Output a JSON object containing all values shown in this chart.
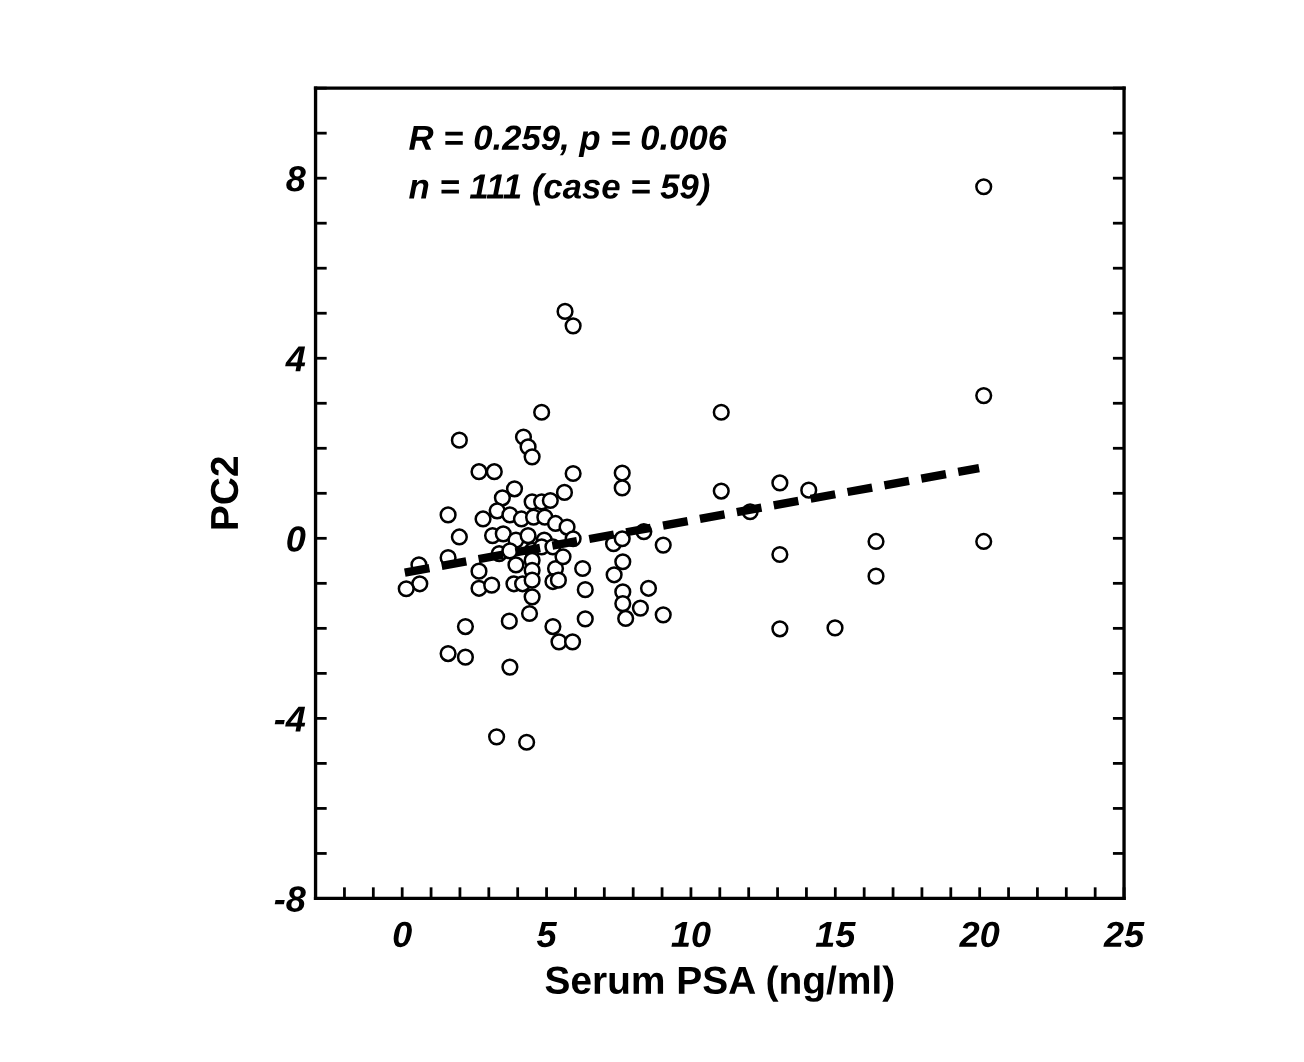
{
  "chart_data": {
    "type": "scatter",
    "xlabel": "Serum PSA (ng/ml)",
    "ylabel": "PC2",
    "annotations": [
      "R = 0.259, p = 0.006",
      "n = 111 (case = 59)"
    ],
    "xlim": [
      -3,
      25
    ],
    "ylim": [
      -8,
      10
    ],
    "xticks": [
      {
        "value": -3,
        "label": null
      },
      {
        "value": -2,
        "label": null
      },
      {
        "value": -1,
        "label": null
      },
      0,
      {
        "value": 1,
        "label": null
      },
      {
        "value": 2,
        "label": null
      },
      {
        "value": 3,
        "label": null
      },
      {
        "value": 4,
        "label": null
      },
      5,
      {
        "value": 6,
        "label": null
      },
      {
        "value": 7,
        "label": null
      },
      {
        "value": 8,
        "label": null
      },
      {
        "value": 9,
        "label": null
      },
      10,
      {
        "value": 11,
        "label": null
      },
      {
        "value": 12,
        "label": null
      },
      {
        "value": 13,
        "label": null
      },
      {
        "value": 14,
        "label": null
      },
      15,
      {
        "value": 16,
        "label": null
      },
      {
        "value": 17,
        "label": null
      },
      {
        "value": 18,
        "label": null
      },
      {
        "value": 19,
        "label": null
      },
      20,
      {
        "value": 21,
        "label": null
      },
      {
        "value": 22,
        "label": null
      },
      {
        "value": 23,
        "label": null
      },
      {
        "value": 24,
        "label": null
      },
      25
    ],
    "yticks": [
      -8,
      {
        "value": -7,
        "label": null
      },
      {
        "value": -6,
        "label": null
      },
      {
        "value": -5,
        "label": null
      },
      -4,
      {
        "value": -3,
        "label": null
      },
      {
        "value": -2,
        "label": null
      },
      {
        "value": -1,
        "label": null
      },
      0,
      {
        "value": 1,
        "label": null
      },
      {
        "value": 2,
        "label": null
      },
      {
        "value": 3,
        "label": null
      },
      4,
      {
        "value": 5,
        "label": null
      },
      {
        "value": 6,
        "label": null
      },
      {
        "value": 7,
        "label": null
      },
      8,
      {
        "value": 9,
        "label": null
      },
      {
        "value": 10,
        "label": null
      }
    ],
    "grid": false,
    "legend": false,
    "series": [
      {
        "color": "#000000",
        "marker": "circle",
        "x": [
          5.64,
          5.92,
          4.83,
          1.98,
          4.2,
          4.36,
          4.5,
          2.66,
          3.19,
          5.92,
          7.62,
          7.62,
          3.89,
          5.62,
          3.47,
          4.5,
          4.83,
          5.13,
          1.59,
          2.8,
          3.29,
          3.73,
          4.13,
          4.55,
          4.94,
          5.31,
          5.71,
          1.98,
          3.13,
          3.5,
          3.94,
          4.36,
          4.92,
          5.92,
          7.32,
          7.62,
          8.37,
          9.04,
          1.59,
          0.58,
          0.61,
          0.14,
          2.66,
          2.66,
          3.1,
          3.36,
          3.73,
          3.94,
          3.87,
          4.17,
          4.5,
          4.5,
          4.5,
          4.5,
          4.5,
          4.83,
          5.22,
          5.31,
          5.22,
          5.41,
          5.57,
          6.25,
          6.34,
          7.34,
          7.64,
          7.64,
          7.64,
          7.74,
          8.25,
          8.53,
          9.04,
          2.19,
          3.71,
          4.41,
          5.22,
          5.43,
          5.9,
          1.59,
          2.19,
          6.34,
          3.73,
          3.27,
          4.31,
          11.05,
          20.14,
          11.05,
          13.08,
          14.08,
          12.05,
          13.08,
          16.41,
          20.14,
          16.41,
          13.08,
          14.99,
          20.14
        ],
        "values": [
          5.04,
          4.72,
          2.8,
          2.18,
          2.25,
          2.03,
          1.81,
          1.48,
          1.48,
          1.44,
          1.45,
          1.12,
          1.1,
          1.02,
          0.9,
          0.81,
          0.81,
          0.84,
          0.52,
          0.43,
          0.61,
          0.52,
          0.43,
          0.47,
          0.47,
          0.33,
          0.25,
          0.03,
          0.06,
          0.1,
          -0.04,
          0.06,
          -0.04,
          -0.01,
          -0.12,
          -0.01,
          0.15,
          -0.15,
          -0.43,
          -0.59,
          -1.01,
          -1.12,
          -0.73,
          -1.11,
          -1.04,
          -0.34,
          -0.28,
          -0.59,
          -1.01,
          -1.01,
          -0.27,
          -0.49,
          -0.71,
          -0.93,
          -1.3,
          -0.19,
          -0.19,
          -0.67,
          -0.96,
          -0.93,
          -0.41,
          -0.67,
          -1.14,
          -0.81,
          -0.52,
          -1.19,
          -1.45,
          -1.78,
          -1.55,
          -1.11,
          -1.7,
          -1.96,
          -1.84,
          -1.67,
          -1.96,
          -2.3,
          -2.3,
          -2.56,
          -2.64,
          -1.79,
          -2.86,
          -4.41,
          -4.53,
          2.8,
          3.17,
          1.05,
          1.23,
          1.07,
          0.59,
          -0.36,
          -0.07,
          -0.07,
          -0.84,
          -2.01,
          -1.99,
          7.81
        ]
      },
      {
        "type": "line",
        "color": "#000000",
        "line_style": "dashed",
        "x": [
          0.09,
          19.98
        ],
        "values": [
          -0.76,
          1.56
        ]
      }
    ]
  }
}
